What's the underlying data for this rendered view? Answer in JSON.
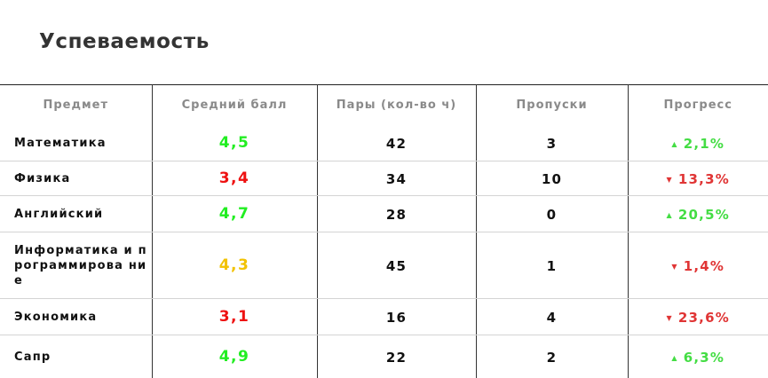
{
  "title": "Успеваемость",
  "columns": [
    "Предмет",
    "Средний балл",
    "Пары (кол-во ч)",
    "Пропуски",
    "Прогресс"
  ],
  "rows": [
    {
      "subject": "Математика",
      "grade": "4,5",
      "hours": "42",
      "absences": "3",
      "progress": "2,1%",
      "trend": "up"
    },
    {
      "subject": "Физика",
      "grade": "3,4",
      "hours": "34",
      "absences": "10",
      "progress": "13,3%",
      "trend": "down"
    },
    {
      "subject": "Английский",
      "grade": "4,7",
      "hours": "28",
      "absences": "0",
      "progress": "20,5%",
      "trend": "up"
    },
    {
      "subject": "Информатика и программирова ние",
      "grade": "4,3",
      "hours": "45",
      "absences": "1",
      "progress": "1,4%",
      "trend": "down"
    },
    {
      "subject": "Экономика",
      "grade": "3,1",
      "hours": "16",
      "absences": "4",
      "progress": "23,6%",
      "trend": "down"
    },
    {
      "subject": "Сапр",
      "grade": "4,9",
      "hours": "22",
      "absences": "2",
      "progress": "6,3%",
      "trend": "up"
    }
  ],
  "icons": {
    "up": "triangle-up-icon",
    "down": "triangle-down-icon"
  },
  "colors": {
    "grade_good": "#22ee22",
    "grade_mid": "#f2c200",
    "grade_bad": "#ee1111",
    "progress_up": "#44dd44",
    "progress_down": "#e03535"
  }
}
